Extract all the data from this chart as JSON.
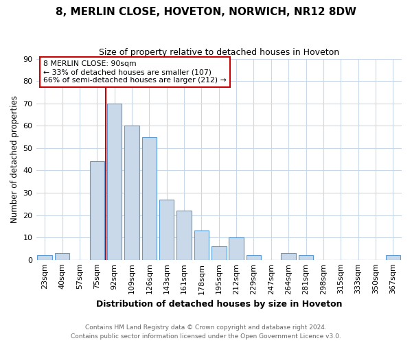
{
  "title": "8, MERLIN CLOSE, HOVETON, NORWICH, NR12 8DW",
  "subtitle": "Size of property relative to detached houses in Hoveton",
  "xlabel": "Distribution of detached houses by size in Hoveton",
  "ylabel": "Number of detached properties",
  "categories": [
    "23sqm",
    "40sqm",
    "57sqm",
    "75sqm",
    "92sqm",
    "109sqm",
    "126sqm",
    "143sqm",
    "161sqm",
    "178sqm",
    "195sqm",
    "212sqm",
    "229sqm",
    "247sqm",
    "264sqm",
    "281sqm",
    "298sqm",
    "315sqm",
    "333sqm",
    "350sqm",
    "367sqm"
  ],
  "values": [
    2,
    3,
    0,
    44,
    70,
    60,
    55,
    27,
    22,
    13,
    6,
    10,
    2,
    0,
    3,
    2,
    0,
    0,
    0,
    0,
    2
  ],
  "bar_color": "#c9d9ea",
  "bar_edge_color": "#5b9bd5",
  "marker_bar_index": 4,
  "annotation_title": "8 MERLIN CLOSE: 90sqm",
  "annotation_line1": "← 33% of detached houses are smaller (107)",
  "annotation_line2": "66% of semi-detached houses are larger (212) →",
  "annotation_box_color": "#ffffff",
  "annotation_box_edge_color": "#cc0000",
  "vline_color": "#cc0000",
  "ylim": [
    0,
    90
  ],
  "yticks": [
    0,
    10,
    20,
    30,
    40,
    50,
    60,
    70,
    80,
    90
  ],
  "footer1": "Contains HM Land Registry data © Crown copyright and database right 2024.",
  "footer2": "Contains public sector information licensed under the Open Government Licence v3.0.",
  "background_color": "#ffffff",
  "grid_color": "#c8d8e8",
  "title_fontsize": 11,
  "subtitle_fontsize": 9,
  "xlabel_fontsize": 9,
  "ylabel_fontsize": 8.5,
  "tick_fontsize": 8,
  "annotation_fontsize": 7.8,
  "footer_fontsize": 6.5,
  "footer_color": "#666666"
}
